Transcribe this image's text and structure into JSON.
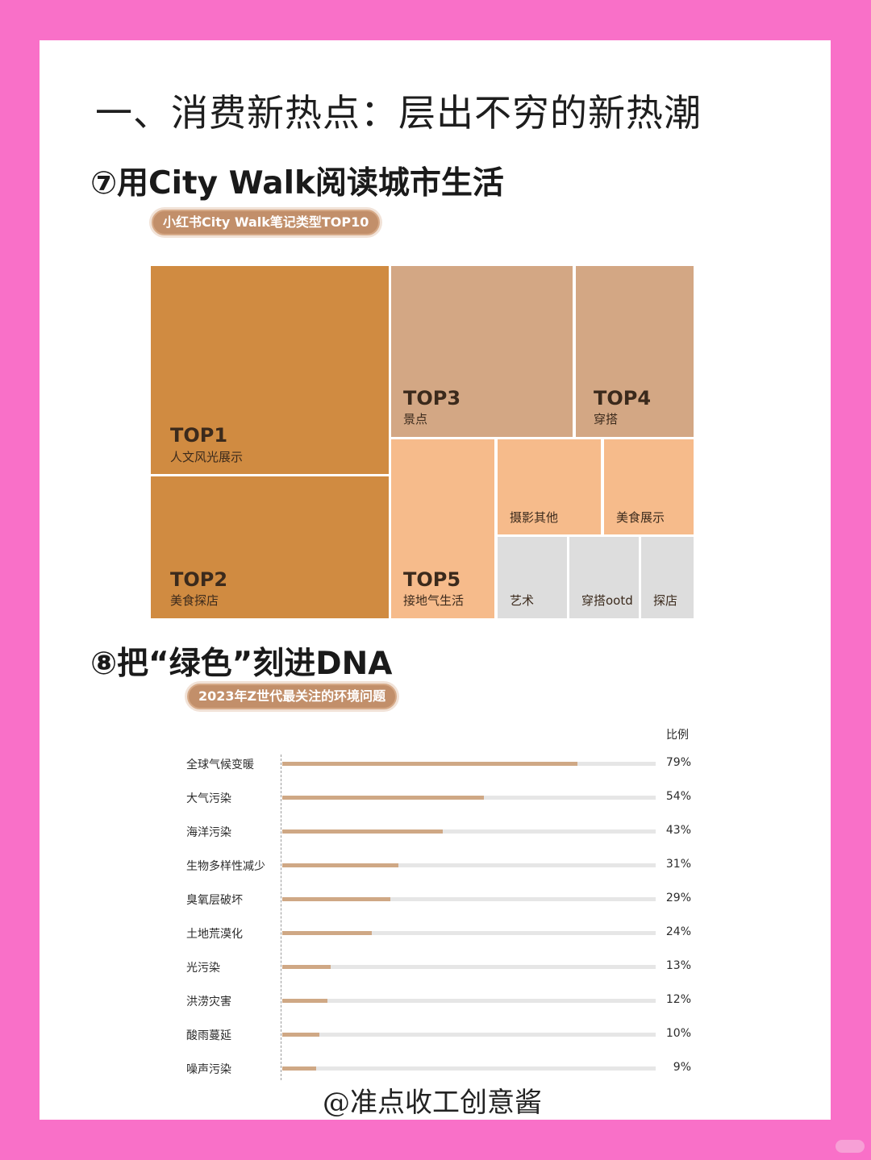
{
  "page": {
    "title": "一、消费新热点：层出不穷的新热潮",
    "watermark": "@准点收工创意酱"
  },
  "section7": {
    "heading": "⑦用City Walk阅读城市生活",
    "badge": "小红书City Walk笔记类型TOP10"
  },
  "section8": {
    "heading": "⑧把“绿色”刻进DNA",
    "badge": "2023年Z世代最关注的环境问题"
  },
  "colors": {
    "top12": "#d08b41",
    "top34": "#d3a784",
    "top5group": "#f6bb8b",
    "gray": "#dddddd",
    "bar": "#cfa885",
    "track": "#e6e6e6",
    "background": "#f970c8"
  },
  "chart_data": [
    {
      "type": "treemap",
      "title": "小红书City Walk笔记类型TOP10",
      "items": [
        {
          "rank": "TOP1",
          "label": "人文风光展示"
        },
        {
          "rank": "TOP2",
          "label": "美食探店"
        },
        {
          "rank": "TOP3",
          "label": "景点"
        },
        {
          "rank": "TOP4",
          "label": "穿搭"
        },
        {
          "rank": "TOP5",
          "label": "接地气生活"
        },
        {
          "rank": "",
          "label": "摄影其他"
        },
        {
          "rank": "",
          "label": "美食展示"
        },
        {
          "rank": "",
          "label": "艺术"
        },
        {
          "rank": "",
          "label": "穿搭ootd"
        },
        {
          "rank": "",
          "label": "探店"
        }
      ]
    },
    {
      "type": "bar",
      "orientation": "horizontal",
      "title": "2023年Z世代最关注的环境问题",
      "value_header": "比例",
      "categories": [
        "全球气候变暖",
        "大气污染",
        "海洋污染",
        "生物多样性减少",
        "臭氧层破坏",
        "土地荒漠化",
        "光污染",
        "洪涝灾害",
        "酸雨蔓延",
        "噪声污染"
      ],
      "values": [
        79,
        54,
        43,
        31,
        29,
        24,
        13,
        12,
        10,
        9
      ],
      "value_labels": [
        "79%",
        "54%",
        "43%",
        "31%",
        "29%",
        "24%",
        "13%",
        "12%",
        "10%",
        "9%"
      ],
      "xlim": [
        0,
        100
      ],
      "grid": false
    }
  ]
}
